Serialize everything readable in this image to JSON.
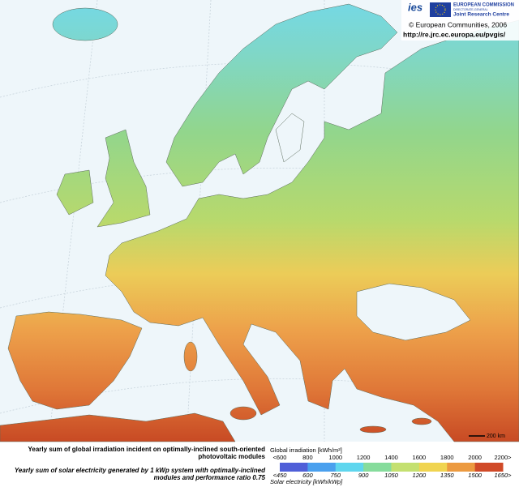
{
  "header": {
    "logo": "ies",
    "commission": "EUROPEAN COMMISSION",
    "directorate": "DIRECTORATE-GENERAL",
    "centre": "Joint Research Centre",
    "copyright": "© European Communities, 2006",
    "url": "http://re.jrc.ec.europa.eu/pvgis/"
  },
  "map": {
    "scale_label": "200 km"
  },
  "legend": {
    "irradiation_caption": [
      "Yearly sum of global irradiation incident on optimally-inclined south-oriented",
      "photovoltaic modules"
    ],
    "electricity_caption": [
      "Yearly sum of solar electricity generated by 1 kWp system with optimally-inclined",
      "modules and performance ratio 0.75"
    ],
    "irradiation_title": "Global irradiation [kWh/m²]",
    "electricity_title": "Solar electricity [kWh/kWp]",
    "irradiation_labels": [
      "<600",
      "800",
      "1000",
      "1200",
      "1400",
      "1600",
      "1800",
      "2000",
      "2200>"
    ],
    "electricity_labels": [
      "<450",
      "600",
      "750",
      "900",
      "1050",
      "1200",
      "1350",
      "1500",
      "1650>"
    ],
    "colors": [
      "#4f5fd8",
      "#4aa0ee",
      "#5fd6ee",
      "#86dc9c",
      "#c4e070",
      "#f0d450",
      "#ec9a40",
      "#d04a28"
    ]
  }
}
